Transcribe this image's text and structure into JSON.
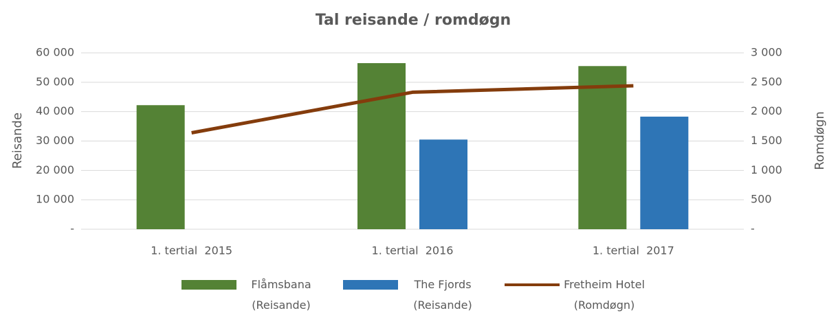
{
  "chart_data": {
    "type": "bar",
    "title": "Tal reisande / romdøgn",
    "categories": [
      "1. tertial  2015",
      "1. tertial  2016",
      "1. tertial  2017"
    ],
    "series": [
      {
        "name": "Flåmsbana (Reisande)",
        "color": "#548235",
        "type": "bar",
        "values": [
          42200,
          56500,
          55500
        ]
      },
      {
        "name": "The Fjords (Reisande)",
        "color": "#2e75b6",
        "type": "bar",
        "values": [
          null,
          30500,
          38300
        ]
      },
      {
        "name": "Fretheim Hotel (Romdøgn)",
        "color": "#843c0c",
        "type": "line",
        "axis": "y2",
        "values": [
          1640,
          2330,
          2440
        ]
      }
    ],
    "ylabel": "Reisande",
    "y2label": "Romdøgn",
    "ylim": [
      0,
      60000
    ],
    "yticks": [
      {
        "value": 0,
        "label": "-"
      },
      {
        "value": 10000,
        "label": "10 000"
      },
      {
        "value": 20000,
        "label": "20 000"
      },
      {
        "value": 30000,
        "label": "30 000"
      },
      {
        "value": 40000,
        "label": "40 000"
      },
      {
        "value": 50000,
        "label": "50 000"
      },
      {
        "value": 60000,
        "label": "60 000"
      }
    ],
    "y2lim": [
      0,
      3000
    ],
    "y2ticks": [
      {
        "value": 0,
        "label": "-"
      },
      500,
      {
        "value": 1000,
        "label": "1 000"
      },
      {
        "value": 1500,
        "label": "1 500"
      },
      {
        "value": 2000,
        "label": "2 000"
      },
      {
        "value": 2500,
        "label": "2 500"
      },
      {
        "value": 3000,
        "label": "3 000"
      }
    ],
    "grid": true,
    "legend": "bottom"
  }
}
